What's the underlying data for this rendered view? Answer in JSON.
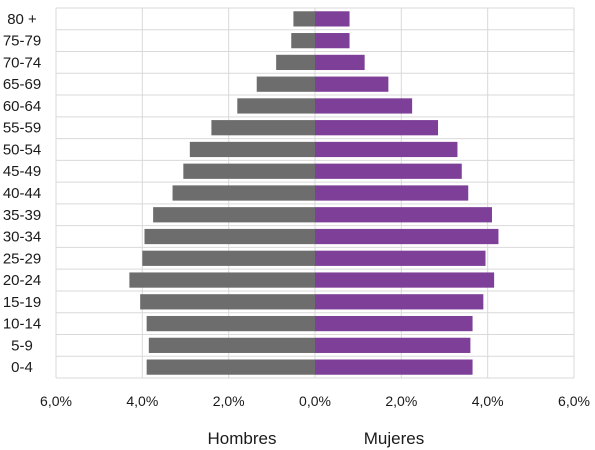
{
  "chart_data": {
    "type": "bar",
    "orientation": "horizontal",
    "layout": "population-pyramid",
    "categories": [
      "0-4",
      "5-9",
      "10-14",
      "15-19",
      "20-24",
      "25-29",
      "30-34",
      "35-39",
      "40-44",
      "45-49",
      "50-54",
      "55-59",
      "60-64",
      "65-69",
      "70-74",
      "75-79",
      "80 +"
    ],
    "series": [
      {
        "name": "Hombres",
        "color": "#6d6d6d",
        "side": "left",
        "values": [
          3.9,
          3.85,
          3.9,
          4.05,
          4.3,
          4.0,
          3.95,
          3.75,
          3.3,
          3.05,
          2.9,
          2.4,
          1.8,
          1.35,
          0.9,
          0.55,
          0.5
        ]
      },
      {
        "name": "Mujeres",
        "color": "#7e3f98",
        "side": "right",
        "values": [
          3.65,
          3.6,
          3.65,
          3.9,
          4.15,
          3.95,
          4.25,
          4.1,
          3.55,
          3.4,
          3.3,
          2.85,
          2.25,
          1.7,
          1.15,
          0.8,
          0.8
        ]
      }
    ],
    "xlim": [
      -6,
      6
    ],
    "x_ticks": [
      -6,
      -4,
      -2,
      0,
      2,
      4,
      6
    ],
    "x_tick_labels": [
      "6,0%",
      "4,0%",
      "2,0%",
      "0,0%",
      "2,0%",
      "4,0%",
      "6,0%"
    ],
    "grid": true,
    "legend_position": "bottom"
  }
}
